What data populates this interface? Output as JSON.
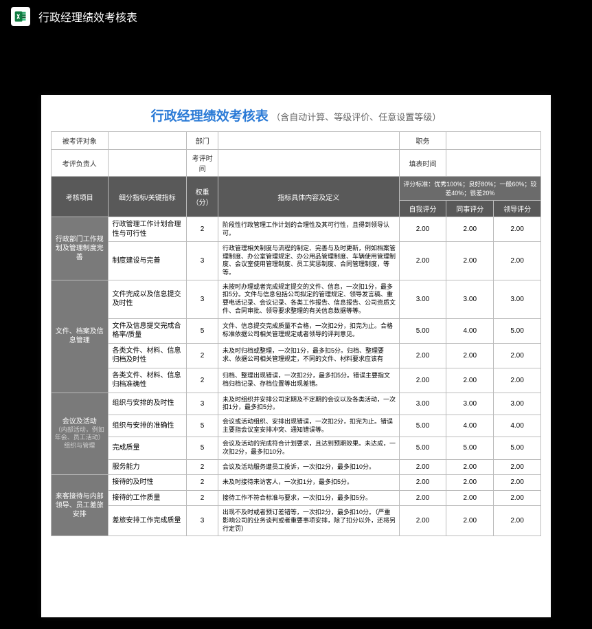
{
  "topbar": {
    "title": "行政经理绩效考核表"
  },
  "sheet": {
    "title": "行政经理绩效考核表",
    "subtitle": "（含自动计算、等级评价、任意设置等级）",
    "info": {
      "r1c1": "被考评对象",
      "r1c2": "部门",
      "r1c3": "职务",
      "r2c1": "考评负责人",
      "r2c2": "考评时间",
      "r2c3": "填表时间"
    },
    "header": {
      "col1": "考核项目",
      "col2": "细分指标/关键指标",
      "col3": "权重（分）",
      "col4": "指标具体内容及定义",
      "std": "评分标准：优秀100%；良好80%；一般60%；较差40%；很差20%",
      "s1": "自我评分",
      "s2": "同事评分",
      "s3": "领导评分"
    },
    "groups": [
      {
        "cat": "行政部门工作规划及管理制度完善",
        "rows": [
          {
            "k": "行政管理工作计划合理性与可行性",
            "w": "2",
            "d": "阶段性行政管理工作计划的合理性及其可行性，且得到领导认可。",
            "a": "2.00",
            "b": "2.00",
            "c": "2.00"
          },
          {
            "k": "制度建设与完善",
            "w": "3",
            "d": "行政管理相关制度与流程的制定、完善与及时更新，例如档案管理制度、办公室管理规定、办公用品管理制度、车辆使用管理制度、会议室使用管理制度、员工奖惩制度、合同管理制度，等等。",
            "a": "2.00",
            "b": "2.00",
            "c": "2.00"
          }
        ]
      },
      {
        "cat": "文件、档案及信息管理",
        "rows": [
          {
            "k": "文件完成以及信息提交及时性",
            "w": "3",
            "d": "未按时办理或者完成规定提交的文件、信息，一次扣1分，最多扣5分。文件与信息包括公司拟定的管理规定、领导发言稿、重要电话记录、会议记录、各类工作报告、信息报告、公司资质文件、合同审批、领导要求整理的有关信息数据等等。",
            "a": "3.00",
            "b": "3.00",
            "c": "3.00"
          },
          {
            "k": "文件及信息提交完成合格率/质量",
            "w": "5",
            "d": "文件、信息提交完成质量不合格，一次扣2分，扣完为止。合格标准依据公司相关管理规定或者领导的评判意见。",
            "a": "5.00",
            "b": "4.00",
            "c": "5.00"
          },
          {
            "k": "各类文件、材料、信息归档及时性",
            "w": "2",
            "d": "未及时归档或整理，一次扣1分，最多扣5分。归档、整理要求、依据公司相关管理规定，不同的文件、材料要求应该有",
            "a": "2.00",
            "b": "2.00",
            "c": "2.00"
          },
          {
            "k": "各类文件、材料、信息归档准确性",
            "w": "2",
            "d": "归档、整理出现错误，一次扣2分，最多扣5分。错误主要指文档归档记录、存档位置等出现差错。",
            "a": "2.00",
            "b": "2.00",
            "c": "2.00"
          }
        ]
      },
      {
        "cat": "会议及活动",
        "catSub": "（内部活动，例如年会、员工活动）组织与管理",
        "rows": [
          {
            "k": "组织与安排的及时性",
            "w": "3",
            "d": "未及时组织并安排公司定期及不定期的会议以及各类活动，一次扣1分，最多扣5分。",
            "a": "3.00",
            "b": "3.00",
            "c": "3.00"
          },
          {
            "k": "组织与安排的准确性",
            "w": "5",
            "d": "会议或活动组织、安排出现错误，一次扣2分，扣完为止。错误主要指会议室安排冲突、通知错误等。",
            "a": "5.00",
            "b": "4.00",
            "c": "4.00"
          },
          {
            "k": "完成质量",
            "w": "5",
            "d": "会议及活动的完成符合计划要求，且达到预期效果。未达成，一次扣2分，最多扣10分。",
            "a": "5.00",
            "b": "5.00",
            "c": "5.00"
          },
          {
            "k": "服务能力",
            "w": "2",
            "d": "会议及活动服务遭员工投诉，一次扣2分，最多扣10分。",
            "a": "2.00",
            "b": "2.00",
            "c": "2.00"
          }
        ]
      },
      {
        "cat": "来客接待与内部领导、员工差旅安排",
        "rows": [
          {
            "k": "接待的及时性",
            "w": "2",
            "d": "未及时接待来访客人，一次扣1分，最多扣5分。",
            "a": "2.00",
            "b": "2.00",
            "c": "2.00"
          },
          {
            "k": "接待的工作质量",
            "w": "2",
            "d": "接待工作不符合标准与要求，一次扣1分，最多扣5分。",
            "a": "2.00",
            "b": "2.00",
            "c": "2.00"
          },
          {
            "k": "差旅安排工作完成质量",
            "w": "3",
            "d": "出现不及时或者预订差错等，一次扣2分，最多扣10分。（严重影响公司的业务谈判或者重要事项安排，除了扣分以外，还将另行定罚）",
            "a": "2.00",
            "b": "2.00",
            "c": "2.00"
          }
        ]
      }
    ]
  }
}
